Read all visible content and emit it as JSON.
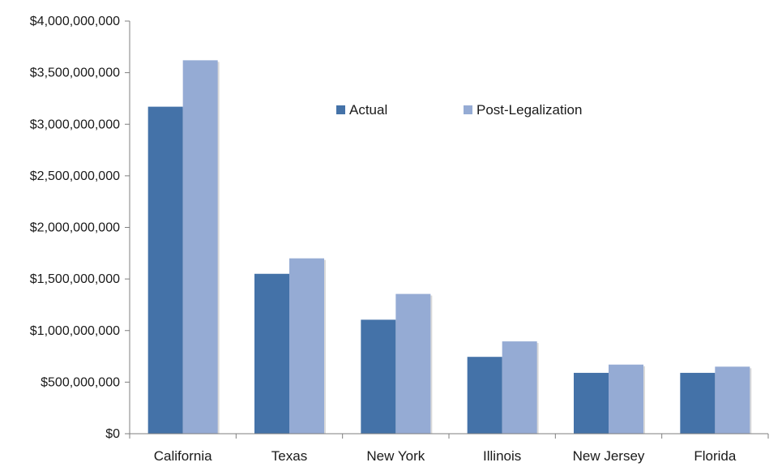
{
  "chart_data": {
    "type": "bar",
    "title": "",
    "xlabel": "",
    "ylabel": "",
    "categories": [
      "California",
      "Texas",
      "New York",
      "Illinois",
      "New Jersey",
      "Florida"
    ],
    "series": [
      {
        "name": "Actual",
        "color": "#4472A8",
        "values": [
          3170000000,
          1550000000,
          1105000000,
          745000000,
          590000000,
          590000000
        ]
      },
      {
        "name": "Post-Legalization",
        "color": "#95ABD4",
        "values": [
          3620000000,
          1700000000,
          1355000000,
          895000000,
          670000000,
          650000000
        ]
      }
    ],
    "ylim": [
      0,
      4000000000
    ],
    "yticks": [
      0,
      500000000,
      1000000000,
      1500000000,
      2000000000,
      2500000000,
      3000000000,
      3500000000,
      4000000000
    ],
    "ytick_labels": [
      "$0",
      "$500,000,000",
      "$1,000,000,000",
      "$1,500,000,000",
      "$2,000,000,000",
      "$2,500,000,000",
      "$3,000,000,000",
      "$3,500,000,000",
      "$4,000,000,000"
    ],
    "grid": false,
    "legend_position": "top-center"
  }
}
